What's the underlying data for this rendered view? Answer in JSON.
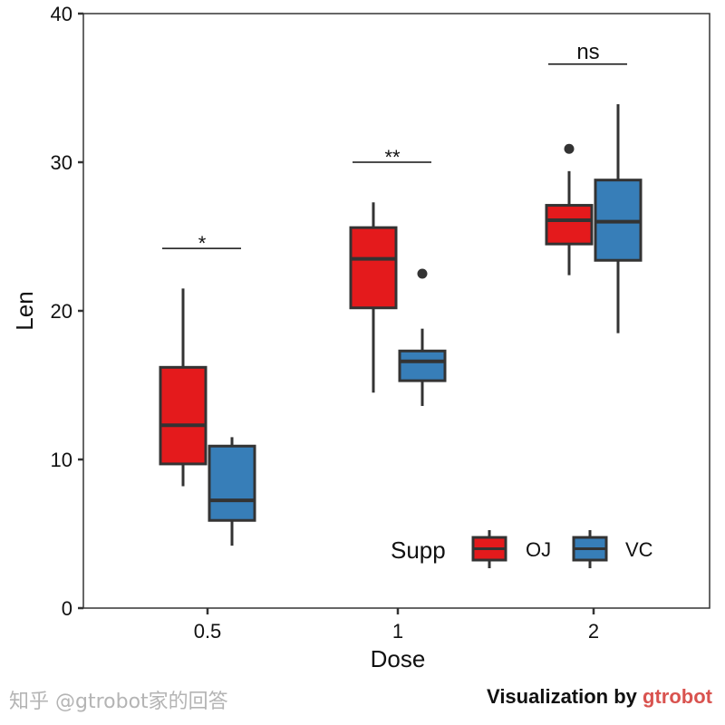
{
  "chart_data": {
    "type": "box",
    "xlabel": "Dose",
    "ylabel": "Len",
    "ylim": [
      0,
      40
    ],
    "yticks": [
      0,
      10,
      20,
      30,
      40
    ],
    "categories": [
      "0.5",
      "1",
      "2"
    ],
    "legend": {
      "title": "Supp",
      "placement": "bottom-right-inside",
      "entries": [
        "OJ",
        "VC"
      ]
    },
    "grid": false,
    "series": [
      {
        "name": "OJ",
        "color": "#E41A1C",
        "boxes": [
          {
            "whisker_low": 8.2,
            "q1": 9.7,
            "median": 12.3,
            "q3": 16.2,
            "whisker_high": 21.5,
            "outliers": []
          },
          {
            "whisker_low": 14.5,
            "q1": 20.2,
            "median": 23.5,
            "q3": 25.6,
            "whisker_high": 27.3,
            "outliers": []
          },
          {
            "whisker_low": 22.4,
            "q1": 24.5,
            "median": 26.1,
            "q3": 27.1,
            "whisker_high": 29.4,
            "outliers": [
              30.9
            ]
          }
        ]
      },
      {
        "name": "VC",
        "color": "#377EB8",
        "boxes": [
          {
            "whisker_low": 4.2,
            "q1": 5.9,
            "median": 7.25,
            "q3": 10.9,
            "whisker_high": 11.5,
            "outliers": []
          },
          {
            "whisker_low": 13.6,
            "q1": 15.3,
            "median": 16.6,
            "q3": 17.3,
            "whisker_high": 18.8,
            "outliers": [
              22.5
            ]
          },
          {
            "whisker_low": 18.5,
            "q1": 23.4,
            "median": 26.0,
            "q3": 28.8,
            "whisker_high": 33.9,
            "outliers": []
          }
        ]
      }
    ],
    "annotations": [
      {
        "category": "0.5",
        "label": "*",
        "y": 24.2
      },
      {
        "category": "1",
        "label": "**",
        "y": 30.0
      },
      {
        "category": "2",
        "label": "ns",
        "y": 36.6
      }
    ]
  },
  "caption": {
    "prefix": "Visualization by ",
    "brand": "gtrobot"
  },
  "watermark": "知乎 @gtrobot家的回答"
}
